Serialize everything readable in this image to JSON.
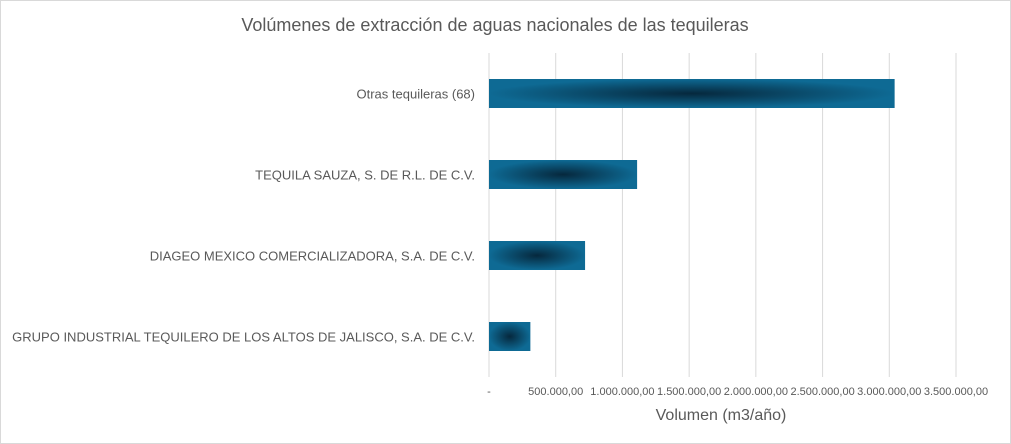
{
  "chart_data": {
    "type": "bar",
    "orientation": "horizontal",
    "title": "Volúmenes de extracción de aguas nacionales de las tequileras",
    "xlabel": "Volumen (m3/año)",
    "ylabel": "",
    "categories": [
      "Otras tequileras (68)",
      "TEQUILA SAUZA, S. DE R.L. DE C.V.",
      "DIAGEO MEXICO COMERCIALIZADORA, S.A. DE C.V.",
      "GRUPO INDUSTRIAL TEQUILERO DE LOS ALTOS DE JALISCO, S.A. DE C.V."
    ],
    "values": [
      3040000,
      1110000,
      720000,
      310000
    ],
    "xlim": [
      0,
      3500000
    ],
    "xticks": [
      0,
      500000,
      1000000,
      1500000,
      2000000,
      2500000,
      3000000,
      3500000
    ],
    "xtick_labels": [
      "-",
      "500.000,00",
      "1.000.000,00",
      "1.500.000,00",
      "2.000.000,00",
      "2.500.000,00",
      "3.000.000,00",
      "3.500.000,00"
    ],
    "grid": true,
    "legend": "none",
    "colors": {
      "bar_edge": "#0e6a94",
      "bar_center": "#06283d",
      "grid": "#d9d9d9",
      "text": "#595959"
    }
  }
}
